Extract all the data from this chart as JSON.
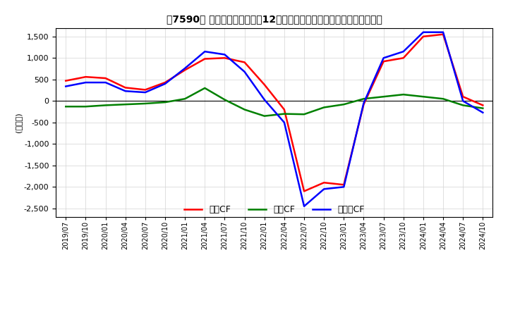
{
  "title": "　7590、 キャッシュフローの12か月移動合計の対前年同期増減額の推移",
  "title_bracket": "、7590。",
  "ylabel": "(百万円)",
  "ylim": [
    -2700,
    1700
  ],
  "yticks": [
    -2500,
    -2000,
    -1500,
    -1000,
    -500,
    0,
    500,
    1000,
    1500
  ],
  "legend": [
    "営業CF",
    "投資CF",
    "フリーCF"
  ],
  "legend_colors": [
    "#ff0000",
    "#008000",
    "#0000ff"
  ],
  "x_labels": [
    "2019/07",
    "2019/10",
    "2020/01",
    "2020/04",
    "2020/07",
    "2020/10",
    "2021/01",
    "2021/04",
    "2021/07",
    "2021/10",
    "2022/01",
    "2022/04",
    "2022/07",
    "2022/10",
    "2023/01",
    "2023/04",
    "2023/07",
    "2023/10",
    "2024/01",
    "2024/04",
    "2024/07",
    "2024/10"
  ],
  "operating_cf": [
    470,
    560,
    530,
    310,
    260,
    430,
    720,
    980,
    1000,
    900,
    380,
    -200,
    -2100,
    -1900,
    -1950,
    -80,
    920,
    1000,
    1500,
    1550,
    100,
    -100
  ],
  "investing_cf": [
    -130,
    -130,
    -100,
    -80,
    -60,
    -30,
    50,
    300,
    30,
    -200,
    -350,
    -300,
    -310,
    -150,
    -80,
    50,
    100,
    150,
    100,
    50,
    -100,
    -170
  ],
  "free_cf": [
    340,
    430,
    430,
    230,
    200,
    400,
    760,
    1150,
    1080,
    680,
    30,
    -500,
    -2450,
    -2050,
    -2000,
    -50,
    1000,
    1150,
    1600,
    1600,
    0,
    -270
  ]
}
